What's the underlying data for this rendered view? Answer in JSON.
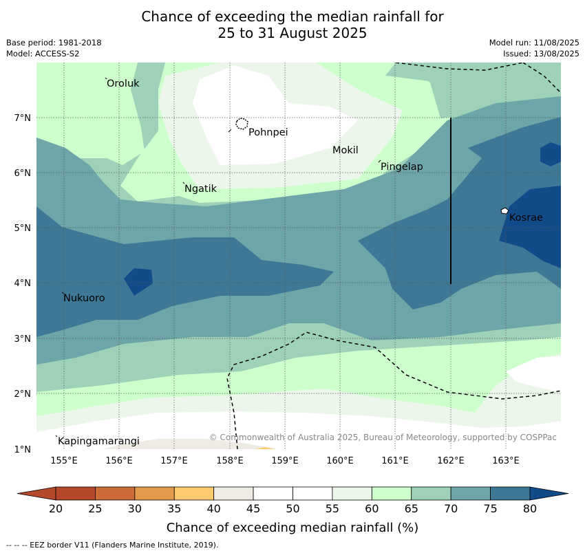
{
  "title": {
    "line1": "Chance of exceeding the median rainfall for",
    "line2": "25 to 31 August 2025"
  },
  "meta": {
    "base_period": "Base period: 1981-2018",
    "model": "Model: ACCESS-S2",
    "model_run": "Model run: 11/08/2025",
    "issued": "Issued: 13/08/2025"
  },
  "map": {
    "lon_ticks": [
      "155°E",
      "156°E",
      "157°E",
      "158°E",
      "159°E",
      "160°E",
      "161°E",
      "162°E",
      "163°E"
    ],
    "lat_ticks": [
      "7°N",
      "6°N",
      "5°N",
      "4°N",
      "3°N",
      "2°N",
      "1°N"
    ],
    "places": {
      "oroluk": "Oroluk",
      "pohnpei": "Pohnpei",
      "mokil": "Mokil",
      "pingelap": "Pingelap",
      "ngatik": "Ngatik",
      "kosrae": "Kosrae",
      "nukuoro": "Nukuoro",
      "kapingamarangi": "Kapingamarangi"
    },
    "copyright": "© Commonwealth of Australia 2025, Bureau of Meteorology, supported by COSPPac"
  },
  "colorbar": {
    "ticks": [
      "20",
      "25",
      "30",
      "35",
      "40",
      "45",
      "50",
      "55",
      "60",
      "65",
      "70",
      "75",
      "80"
    ],
    "colors": [
      "#b5482a",
      "#cc6a38",
      "#e49a4c",
      "#fdcb6e",
      "#eeebe4",
      "#ffffff",
      "#ffffff",
      "#ecf6ea",
      "#ccffcc",
      "#9dd2b8",
      "#6ea5a8",
      "#3e7896",
      "#124b8a"
    ],
    "label": "Chance of exceeding median rainfall (%)"
  },
  "footer": "--  --  -- EEZ border V11 (Flanders Marine Institute, 2019)."
}
